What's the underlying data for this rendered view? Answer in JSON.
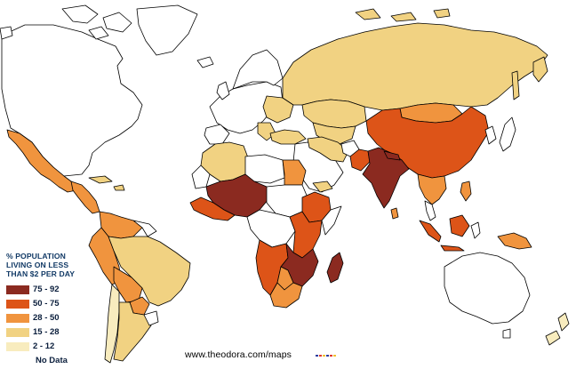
{
  "legend": {
    "title_lines": [
      "% POPULATION",
      "LIVING ON LESS",
      "THAN $2 PER DAY"
    ],
    "items": [
      {
        "label": "75 - 92",
        "color": "#8b2a20"
      },
      {
        "label": "50 - 75",
        "color": "#dd5418"
      },
      {
        "label": "28 - 50",
        "color": "#f0943e"
      },
      {
        "label": "15 - 28",
        "color": "#f1d282"
      },
      {
        "label": "2 - 12",
        "color": "#f8ecbe"
      },
      {
        "label": "No Data",
        "color": "#ffffff"
      }
    ]
  },
  "credit": "www.theodora.com/maps",
  "credit_dot_colors": [
    "#2c3ca0",
    "#e0382c",
    "#f0c030",
    "#2c3ca0",
    "#e0382c",
    "#f0c030"
  ],
  "map": {
    "border_color": "#000000",
    "regions": [
      {
        "name": "Mexico",
        "class": "28 - 50"
      },
      {
        "name": "Central America",
        "class": "28 - 50"
      },
      {
        "name": "Brazil",
        "class": "15 - 28"
      },
      {
        "name": "Bolivia",
        "class": "28 - 50"
      },
      {
        "name": "Colombia & Venezuela",
        "class": "28 - 50"
      },
      {
        "name": "Peru & Ecuador",
        "class": "28 - 50"
      },
      {
        "name": "Argentina",
        "class": "15 - 28"
      },
      {
        "name": "Chile",
        "class": "2 - 12"
      },
      {
        "name": "Paraguay",
        "class": "28 - 50"
      },
      {
        "name": "Russia & Kazakhstan",
        "class": "15 - 28"
      },
      {
        "name": "China",
        "class": "50 - 75"
      },
      {
        "name": "India",
        "class": "75 - 92"
      },
      {
        "name": "Pakistan",
        "class": "50 - 75"
      },
      {
        "name": "Mongolia",
        "class": "28 - 50"
      },
      {
        "name": "Southeast Asia",
        "class": "28 - 50"
      },
      {
        "name": "Indonesia",
        "class": "50 - 75"
      },
      {
        "name": "Philippines",
        "class": "28 - 50"
      },
      {
        "name": "Papua New Guinea",
        "class": "28 - 50"
      },
      {
        "name": "Egypt",
        "class": "28 - 50"
      },
      {
        "name": "Morocco & Algeria",
        "class": "15 - 28"
      },
      {
        "name": "Mali, Niger & Nigeria",
        "class": "75 - 92"
      },
      {
        "name": "West Africa coast",
        "class": "50 - 75"
      },
      {
        "name": "Ethiopia & Horn",
        "class": "50 - 75"
      },
      {
        "name": "East Africa",
        "class": "50 - 75"
      },
      {
        "name": "Zambia, Malawi & Mozambique",
        "class": "75 - 92"
      },
      {
        "name": "Madagascar",
        "class": "75 - 92"
      },
      {
        "name": "Angola & Namibia",
        "class": "50 - 75"
      },
      {
        "name": "South Africa",
        "class": "28 - 50"
      },
      {
        "name": "Botswana",
        "class": "28 - 50"
      },
      {
        "name": "Turkey & Middle East",
        "class": "15 - 28"
      },
      {
        "name": "Eastern Europe",
        "class": "15 - 28"
      },
      {
        "name": "Central Asia",
        "class": "15 - 28"
      },
      {
        "name": "New Zealand",
        "class": "2 - 12"
      }
    ]
  }
}
